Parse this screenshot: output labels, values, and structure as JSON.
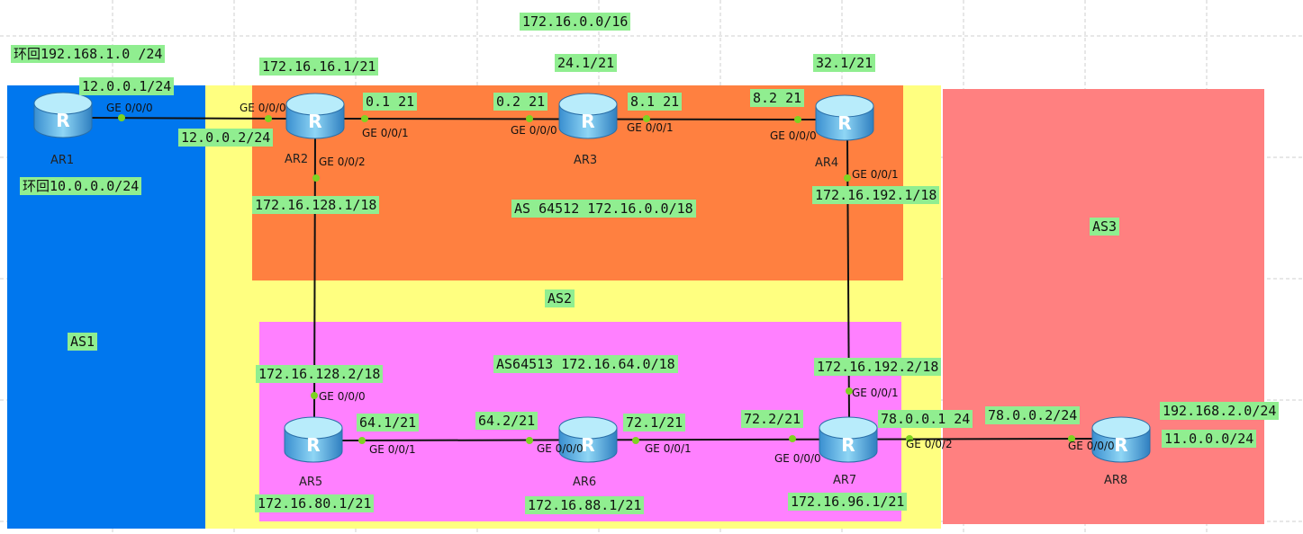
{
  "labels": [
    "172.16.0.0/16",
    "环回192.168.1.0 /24",
    "172.16.16.1/21",
    "24.1/21",
    "32.1/21",
    "12.0.0.1/24",
    "0.1 21",
    "0.2 21",
    "8.1 21",
    "8.2 21",
    "12.0.0.2/24",
    "环回10.0.0.0/24",
    "172.16.128.1/18",
    "AS 64512 172.16.0.0/18",
    "172.16.192.1/18",
    "AS3",
    "AS2",
    "AS1",
    "AS64513 172.16.64.0/18",
    "172.16.192.2/18",
    "172.16.128.2/18",
    "192.168.2.0/24",
    "64.1/21",
    "64.2/21",
    "72.1/21",
    "72.2/21",
    "78.0.0.1 24",
    "78.0.0.2/24",
    "11.0.0.0/24",
    "172.16.80.1/21",
    "172.16.88.1/21",
    "172.16.96.1/21"
  ],
  "ports": [
    "GE 0/0/0",
    "GE 0/0/0",
    "GE 0/0/1",
    "GE 0/0/2",
    "GE 0/0/0",
    "GE 0/0/1",
    "GE 0/0/0",
    "GE 0/0/1",
    "GE 0/0/0",
    "GE 0/0/1",
    "GE 0/0/0",
    "GE 0/0/1",
    "GE 0/0/1",
    "GE 0/0/0",
    "GE 0/0/2",
    "GE 0/0/0"
  ],
  "routers": [
    "AR1",
    "AR2",
    "AR3",
    "AR4",
    "AR5",
    "AR6",
    "AR7",
    "AR8"
  ],
  "router_icon_letter": "R"
}
